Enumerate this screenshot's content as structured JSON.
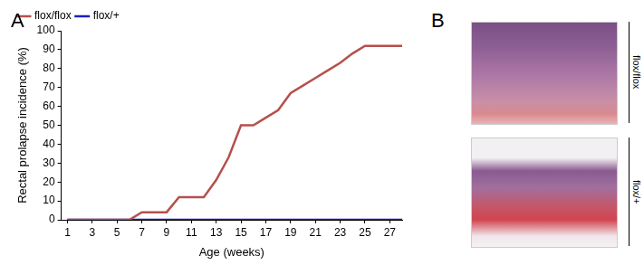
{
  "chart_data": {
    "type": "line",
    "x_label": "Age (weeks)",
    "y_label": "Rectal prolapse incidence (%)",
    "x": [
      1,
      2,
      3,
      4,
      5,
      6,
      7,
      8,
      9,
      10,
      11,
      12,
      13,
      14,
      15,
      16,
      17,
      18,
      19,
      20,
      21,
      22,
      23,
      24,
      25,
      26,
      27,
      28
    ],
    "series": [
      {
        "name": "flox/flox",
        "color": "#b5504c",
        "values": [
          0,
          0,
          0,
          0,
          0,
          0,
          4,
          4,
          4,
          12,
          12,
          12,
          21,
          33,
          50,
          50,
          54,
          58,
          67,
          71,
          75,
          79,
          83,
          88,
          92,
          92,
          92,
          92
        ]
      },
      {
        "name": "flox/+",
        "color": "#1c1cc8",
        "values": [
          0,
          0,
          0,
          0,
          0,
          0,
          0,
          0,
          0,
          0,
          0,
          0,
          0,
          0,
          0,
          0,
          0,
          0,
          0,
          0,
          0,
          0,
          0,
          0,
          0,
          0,
          0,
          0
        ]
      }
    ],
    "xlim": [
      0.5,
      28
    ],
    "xticks": [
      1,
      3,
      5,
      7,
      9,
      11,
      13,
      15,
      17,
      19,
      21,
      23,
      25,
      27
    ],
    "ylim": [
      0,
      100
    ],
    "yticks": [
      0,
      10,
      20,
      30,
      40,
      50,
      60,
      70,
      80,
      90,
      100
    ],
    "grid": false,
    "legend": "upper left"
  },
  "panel_labels": [
    "A",
    "B"
  ],
  "panel_b": {
    "image_labels": [
      "flox/flox",
      "flox/+"
    ]
  }
}
